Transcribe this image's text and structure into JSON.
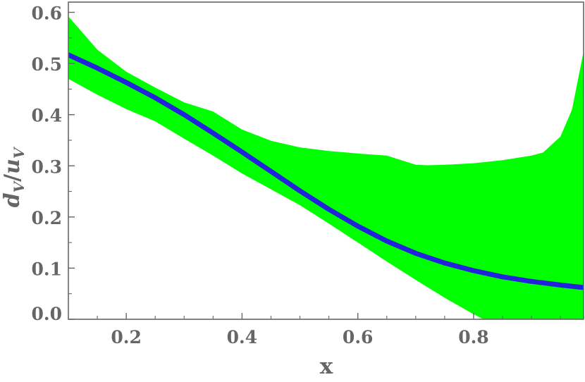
{
  "chart_data": {
    "type": "line",
    "title": "",
    "xlabel": "x",
    "ylabel": {
      "base": "d",
      "base_sub": "V",
      "sep": "/",
      "den": "u",
      "den_sub": "V"
    },
    "xlim": [
      0.1,
      0.99
    ],
    "ylim": [
      0.0,
      0.62
    ],
    "x_ticks": [
      0.2,
      0.4,
      0.6,
      0.8
    ],
    "x_tick_labels": [
      "0.2",
      "0.4",
      "0.6",
      "0.8"
    ],
    "y_ticks": [
      0.0,
      0.1,
      0.2,
      0.3,
      0.4,
      0.5,
      0.6
    ],
    "y_tick_labels": [
      "0.0",
      "0.1",
      "0.2",
      "0.3",
      "0.4",
      "0.5",
      "0.6"
    ],
    "grid": false,
    "colors": {
      "band": "#00ff00",
      "line": "#2222dd",
      "axis": "#666666"
    },
    "series": [
      {
        "kind": "line",
        "x": [
          0.1,
          0.15,
          0.2,
          0.25,
          0.3,
          0.35,
          0.4,
          0.45,
          0.5,
          0.55,
          0.6,
          0.65,
          0.7,
          0.75,
          0.8,
          0.85,
          0.9,
          0.95,
          0.99
        ],
        "y": [
          0.517,
          0.491,
          0.463,
          0.433,
          0.4,
          0.364,
          0.327,
          0.289,
          0.251,
          0.215,
          0.182,
          0.153,
          0.129,
          0.11,
          0.095,
          0.083,
          0.074,
          0.067,
          0.062
        ]
      },
      {
        "kind": "band",
        "x": [
          0.1,
          0.15,
          0.2,
          0.25,
          0.3,
          0.35,
          0.4,
          0.45,
          0.5,
          0.55,
          0.6,
          0.65,
          0.7,
          0.72,
          0.75,
          0.8,
          0.85,
          0.9,
          0.92,
          0.95,
          0.97,
          0.99
        ],
        "upper": [
          0.592,
          0.527,
          0.484,
          0.453,
          0.424,
          0.406,
          0.371,
          0.349,
          0.336,
          0.329,
          0.324,
          0.32,
          0.302,
          0.301,
          0.302,
          0.305,
          0.311,
          0.32,
          0.326,
          0.357,
          0.41,
          0.524
        ],
        "lower": [
          0.47,
          0.439,
          0.411,
          0.387,
          0.353,
          0.32,
          0.285,
          0.254,
          0.223,
          0.187,
          0.15,
          0.113,
          0.077,
          0.063,
          0.042,
          0.01,
          -0.02,
          -0.02,
          -0.02,
          -0.02,
          -0.02,
          -0.02
        ]
      }
    ]
  }
}
